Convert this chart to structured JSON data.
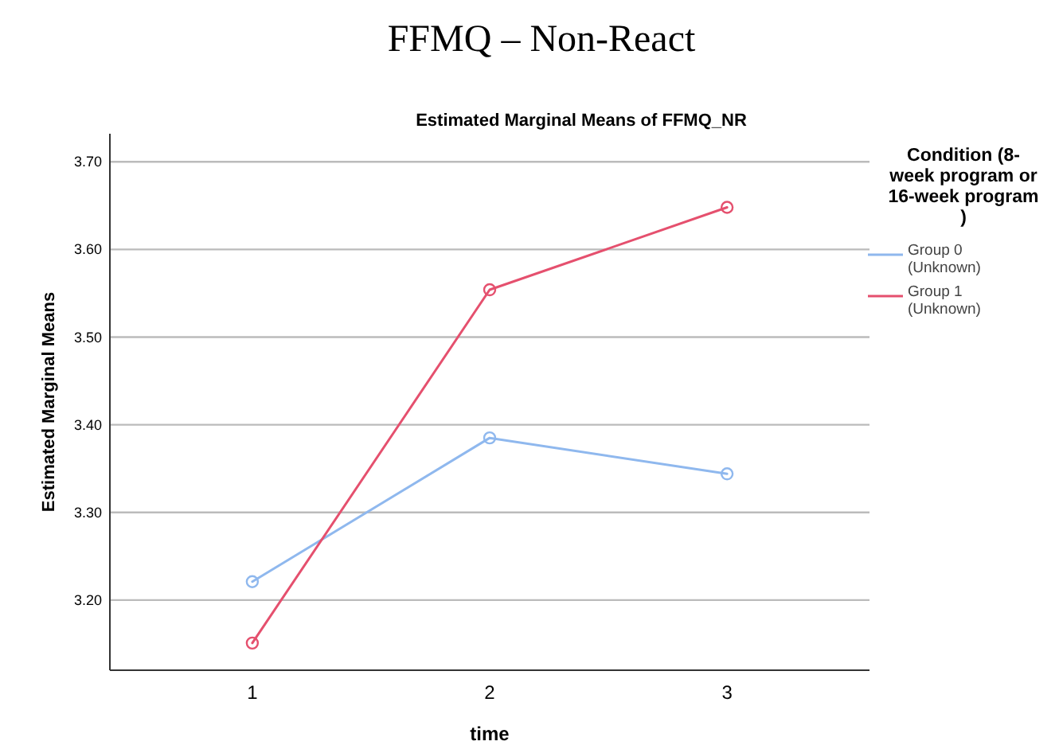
{
  "chart_data": {
    "type": "line",
    "title": "FFMQ – Non-React",
    "subtitle": "Estimated Marginal Means of FFMQ_NR",
    "xlabel": "time",
    "ylabel": "Estimated Marginal Means",
    "legend_title": "Condition (8-week program or 16-week program )",
    "categories": [
      "1",
      "2",
      "3"
    ],
    "series": [
      {
        "name": "Group 0 (Unknown)",
        "color": "#8fb8ee",
        "values": [
          3.221,
          3.385,
          3.344
        ]
      },
      {
        "name": "Group 1 (Unknown)",
        "color": "#e5506e",
        "values": [
          3.151,
          3.554,
          3.648
        ]
      }
    ],
    "ylim": [
      3.12,
      3.732
    ],
    "yticks": [
      {
        "value": 3.2,
        "label": "3.20"
      },
      {
        "value": 3.3,
        "label": "3.30"
      },
      {
        "value": 3.4,
        "label": "3.40"
      },
      {
        "value": 3.5,
        "label": "3.50"
      },
      {
        "value": 3.6,
        "label": "3.60"
      },
      {
        "value": 3.7,
        "label": "3.70"
      }
    ],
    "grid": "y",
    "legend": "right",
    "marker": "circle",
    "line_style": "solid"
  }
}
